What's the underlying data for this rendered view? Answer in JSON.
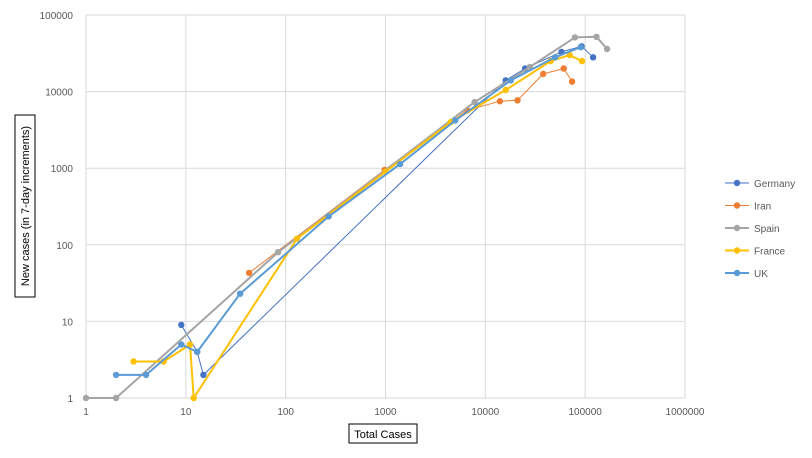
{
  "chart_data": {
    "type": "line",
    "xscale": "log",
    "yscale": "log",
    "xlabel": "Total Cases",
    "ylabel": "New cases  (in  7-day increments)",
    "xlim": [
      1,
      1000000
    ],
    "ylim": [
      1,
      100000
    ],
    "xticks": [
      "1",
      "10",
      "100",
      "1000",
      "10000",
      "100000",
      "1000000"
    ],
    "yticks": [
      "1",
      "10",
      "100",
      "1000",
      "10000",
      "100000"
    ],
    "grid": true,
    "legend_position": "right",
    "series": [
      {
        "name": "Germany",
        "color": "#4472C4",
        "marker_color": "#4472C4",
        "line_width": 1,
        "points": [
          [
            9,
            9
          ],
          [
            13,
            4
          ],
          [
            15,
            2
          ],
          [
            16000,
            14000
          ],
          [
            25000,
            20000
          ],
          [
            58000,
            33000
          ],
          [
            92000,
            39000
          ],
          [
            120000,
            28000
          ]
        ]
      },
      {
        "name": "Iran",
        "color": "#ED7D31",
        "marker_color": "#ED7D31",
        "line_width": 1,
        "points": [
          [
            43,
            43
          ],
          [
            980,
            950
          ],
          [
            6600,
            5700
          ],
          [
            14000,
            7500
          ],
          [
            21000,
            7700
          ],
          [
            38000,
            17000
          ],
          [
            61000,
            20000
          ],
          [
            74000,
            13500
          ]
        ]
      },
      {
        "name": "Spain",
        "color": "#A5A5A5",
        "marker_color": "#A5A5A5",
        "line_width": 2,
        "points": [
          [
            1,
            1
          ],
          [
            2,
            1
          ],
          [
            84,
            80
          ],
          [
            7800,
            7300
          ],
          [
            28000,
            21000
          ],
          [
            79000,
            51000
          ],
          [
            130000,
            52000
          ],
          [
            166000,
            36000
          ]
        ]
      },
      {
        "name": "France",
        "color": "#FFC000",
        "marker_color": "#FFC000",
        "line_width": 2,
        "points": [
          [
            3,
            3
          ],
          [
            6,
            3
          ],
          [
            11,
            5
          ],
          [
            12,
            1
          ],
          [
            130,
            120
          ],
          [
            1000,
            900
          ],
          [
            4500,
            4000
          ],
          [
            16000,
            10500
          ],
          [
            45000,
            25000
          ],
          [
            70000,
            30000
          ],
          [
            93000,
            25000
          ]
        ]
      },
      {
        "name": "UK",
        "color": "#5B9BD5",
        "marker_color": "#5B9BD5",
        "line_width": 2,
        "points": [
          [
            2,
            2
          ],
          [
            4,
            2
          ],
          [
            9,
            5
          ],
          [
            13,
            4
          ],
          [
            35,
            23
          ],
          [
            270,
            235
          ],
          [
            1400,
            1130
          ],
          [
            5000,
            4200
          ],
          [
            18000,
            14000
          ],
          [
            50000,
            28000
          ],
          [
            90000,
            38000
          ]
        ]
      }
    ]
  }
}
